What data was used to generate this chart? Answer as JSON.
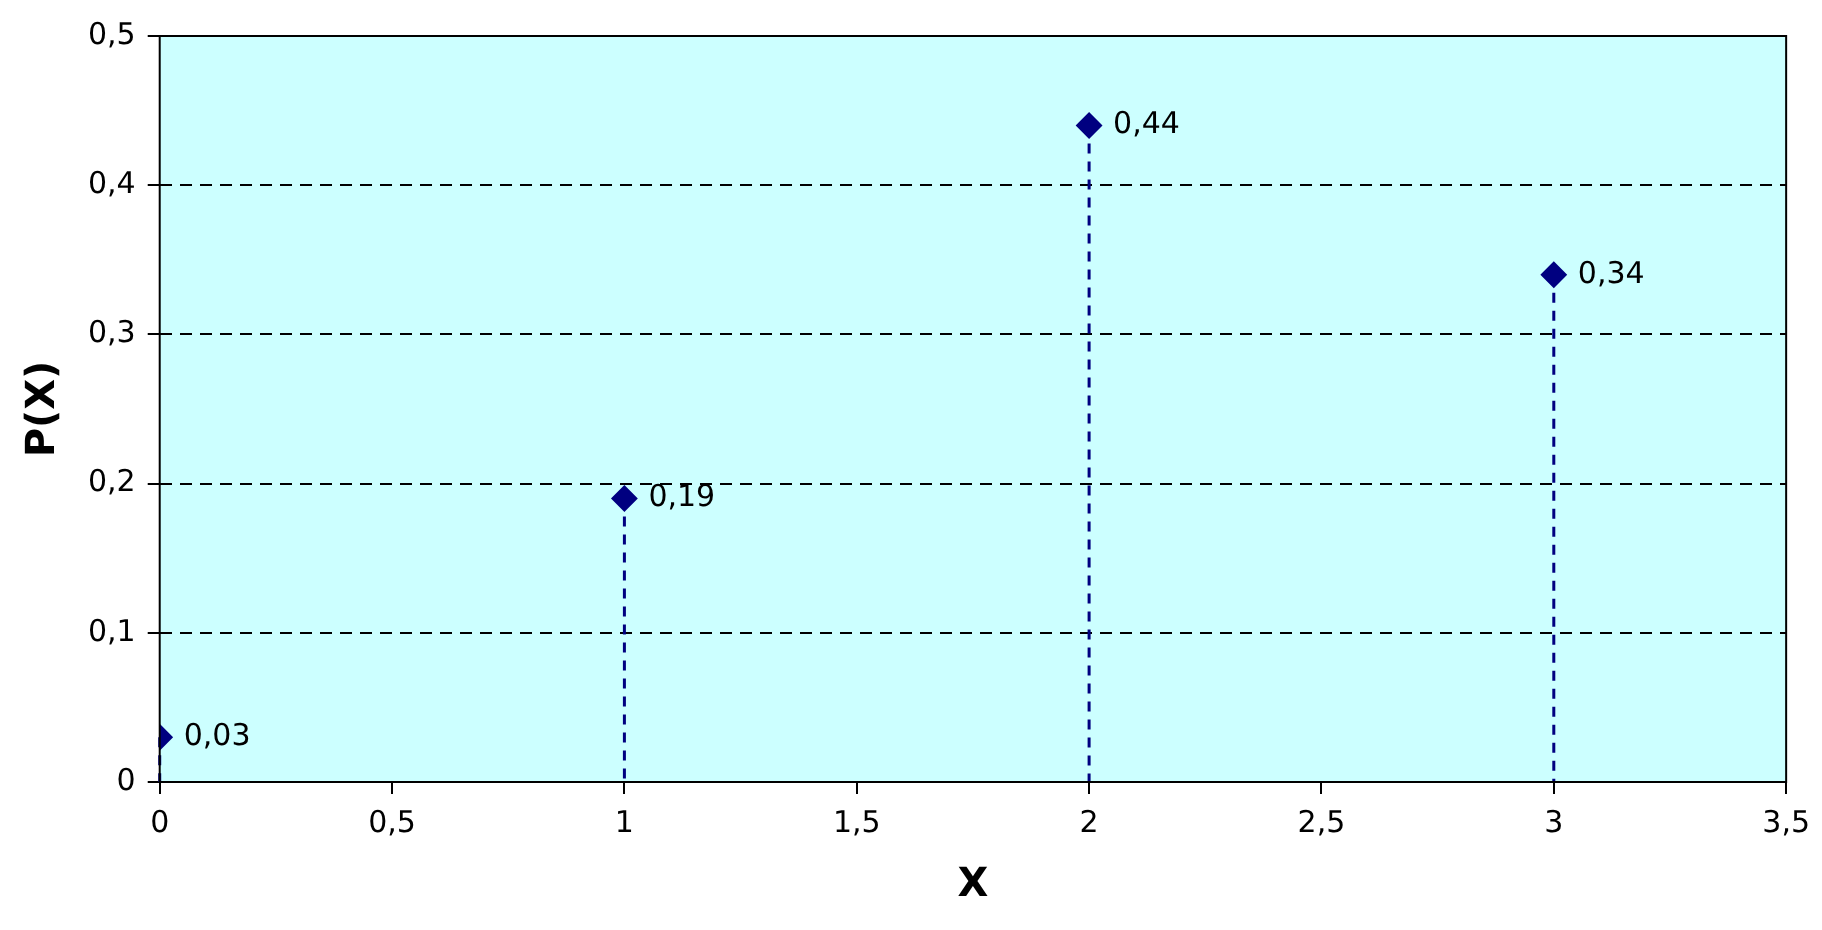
{
  "chart_data": {
    "type": "lollipop",
    "xlabel": "X",
    "ylabel": "P(X)",
    "x": [
      0,
      1,
      2,
      3
    ],
    "values": [
      0.03,
      0.19,
      0.44,
      0.34
    ],
    "value_labels": [
      "0,03",
      "0,19",
      "0,44",
      "0,34"
    ],
    "color": "#000080",
    "marker": "diamond",
    "line_style": "dashed",
    "grid": "y",
    "legend": false,
    "xlim": [
      0,
      3.5
    ],
    "xticks": [
      0,
      {
        "value": 0.5,
        "label": "0,5"
      },
      1,
      {
        "value": 1.5,
        "label": "1,5"
      },
      2,
      {
        "value": 2.5,
        "label": "2,5"
      },
      3,
      {
        "value": 3.5,
        "label": "3,5"
      }
    ],
    "ylim": [
      0,
      0.5
    ],
    "yticks": [
      0,
      {
        "value": 0.1,
        "label": "0,1"
      },
      {
        "value": 0.2,
        "label": "0,2"
      },
      {
        "value": 0.3,
        "label": "0,3"
      },
      {
        "value": 0.4,
        "label": "0,4"
      },
      {
        "value": 0.5,
        "label": "0,5"
      }
    ]
  }
}
